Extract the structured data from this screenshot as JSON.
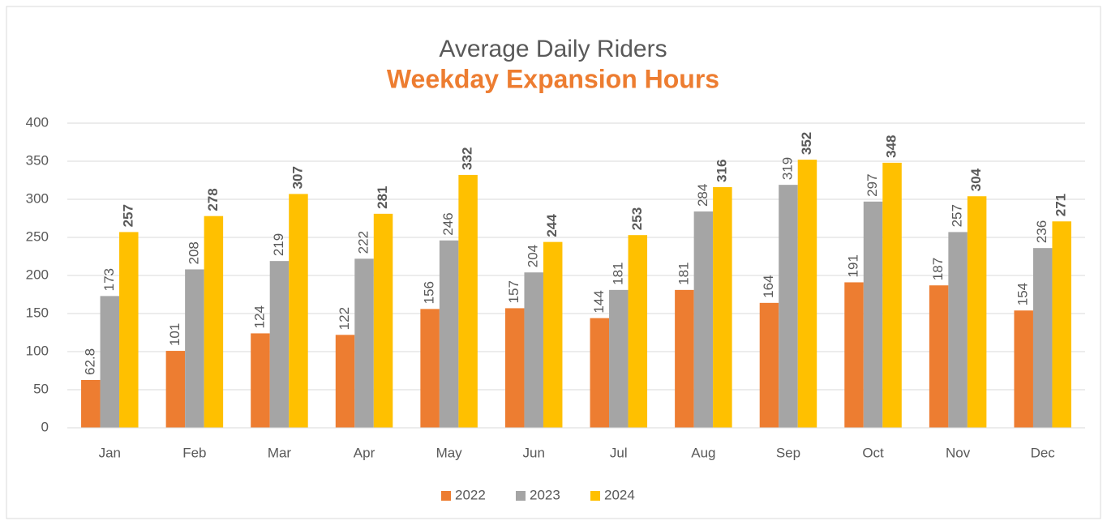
{
  "chart_data": {
    "type": "bar",
    "title": "Average Daily Riders",
    "subtitle": "Weekday Expansion Hours",
    "categories": [
      "Jan",
      "Feb",
      "Mar",
      "Apr",
      "May",
      "Jun",
      "Jul",
      "Aug",
      "Sep",
      "Oct",
      "Nov",
      "Dec"
    ],
    "series": [
      {
        "name": "2022",
        "color": "#ED7D31",
        "label_weight": "normal",
        "values": [
          62.8,
          101,
          124,
          122,
          156,
          157,
          144,
          181,
          164,
          191,
          187,
          154
        ]
      },
      {
        "name": "2023",
        "color": "#A5A5A5",
        "label_weight": "normal",
        "values": [
          173,
          208,
          219,
          222,
          246,
          204,
          181,
          284,
          319,
          297,
          257,
          236
        ]
      },
      {
        "name": "2024",
        "color": "#FFC000",
        "label_weight": "bold",
        "values": [
          257,
          278,
          307,
          281,
          332,
          244,
          253,
          316,
          352,
          348,
          304,
          271
        ]
      }
    ],
    "ylim": [
      0,
      400
    ],
    "yticks": [
      0,
      50,
      100,
      150,
      200,
      250,
      300,
      350,
      400
    ],
    "grid": true,
    "legend": "bottom"
  }
}
